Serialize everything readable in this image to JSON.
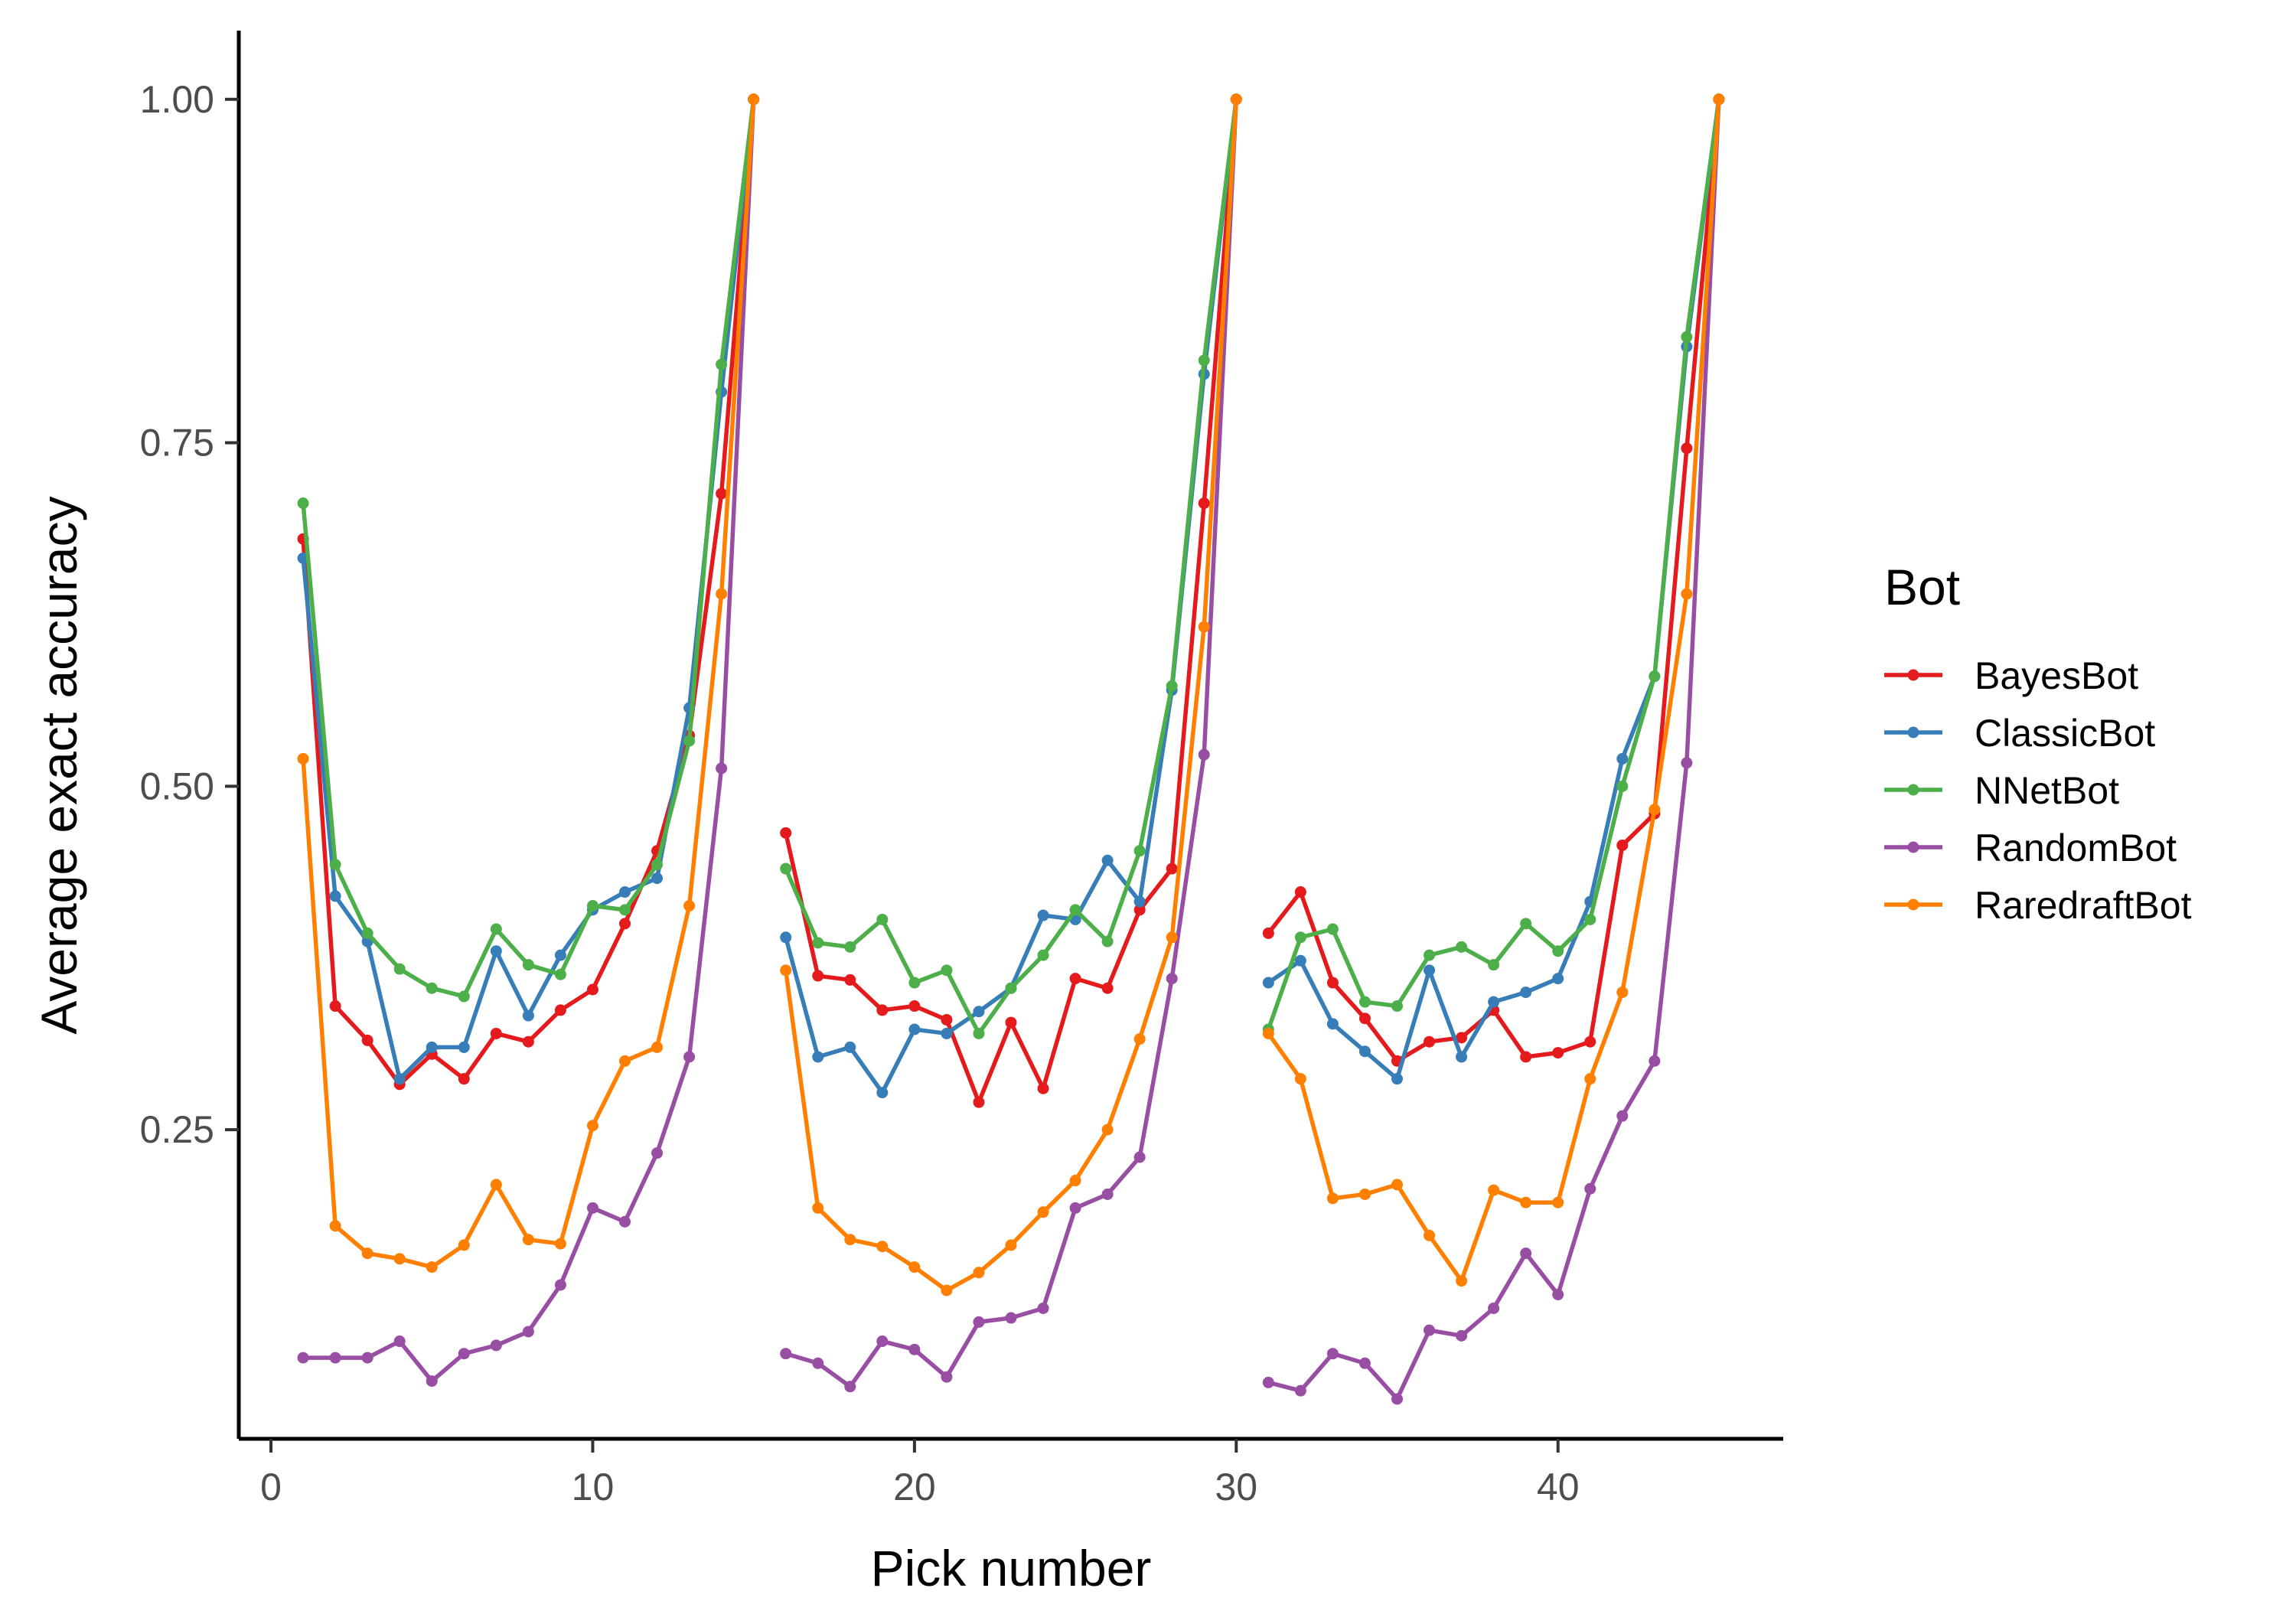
{
  "chart_data": {
    "type": "line",
    "xlabel": "Pick number",
    "ylabel": "Average exact accuracy",
    "xlim": [
      -1,
      47
    ],
    "ylim": [
      0.025,
      1.05
    ],
    "x_ticks": [
      0,
      10,
      20,
      30,
      40
    ],
    "x_tick_labels": [
      "0",
      "10",
      "20",
      "30",
      "40"
    ],
    "y_ticks": [
      0.25,
      0.5,
      0.75,
      1.0
    ],
    "y_tick_labels": [
      "0.25",
      "0.50",
      "0.75",
      "1.00"
    ],
    "grid": false,
    "legend": {
      "title": "Bot",
      "position": "right"
    },
    "segments": [
      [
        1,
        15
      ],
      [
        16,
        30
      ],
      [
        31,
        45
      ]
    ],
    "series": [
      {
        "name": "BayesBot",
        "color": "#e41a1c",
        "x": [
          1,
          2,
          3,
          4,
          5,
          6,
          7,
          8,
          9,
          10,
          11,
          12,
          13,
          14,
          15,
          16,
          17,
          18,
          19,
          20,
          21,
          22,
          23,
          24,
          25,
          26,
          27,
          28,
          29,
          30,
          31,
          32,
          33,
          34,
          35,
          36,
          37,
          38,
          39,
          40,
          41,
          42,
          43,
          44,
          45
        ],
        "y": [
          0.68,
          0.34,
          0.315,
          0.283,
          0.305,
          0.287,
          0.32,
          0.314,
          0.337,
          0.352,
          0.4,
          0.453,
          0.537,
          0.713,
          1.0,
          0.466,
          0.362,
          0.359,
          0.337,
          0.34,
          0.33,
          0.27,
          0.328,
          0.28,
          0.36,
          0.353,
          0.41,
          0.44,
          0.706,
          1.0,
          0.393,
          0.423,
          0.357,
          0.331,
          0.3,
          0.314,
          0.317,
          0.337,
          0.303,
          0.306,
          0.314,
          0.457,
          0.48,
          0.746,
          1.0
        ]
      },
      {
        "name": "ClassicBot",
        "color": "#377eb8",
        "x": [
          1,
          2,
          3,
          4,
          5,
          6,
          7,
          8,
          9,
          10,
          11,
          12,
          13,
          14,
          15,
          16,
          17,
          18,
          19,
          20,
          21,
          22,
          23,
          24,
          25,
          26,
          27,
          28,
          29,
          30,
          31,
          32,
          33,
          34,
          35,
          36,
          37,
          38,
          39,
          40,
          41,
          42,
          43,
          44,
          45
        ],
        "y": [
          0.666,
          0.42,
          0.387,
          0.287,
          0.31,
          0.31,
          0.38,
          0.333,
          0.377,
          0.41,
          0.423,
          0.433,
          0.557,
          0.787,
          1.0,
          0.39,
          0.303,
          0.31,
          0.277,
          0.323,
          0.32,
          0.336,
          0.353,
          0.406,
          0.403,
          0.446,
          0.416,
          0.57,
          0.8,
          1.0,
          0.357,
          0.373,
          0.327,
          0.307,
          0.287,
          0.366,
          0.303,
          0.343,
          0.35,
          0.36,
          0.416,
          0.52,
          0.58,
          0.82,
          1.0
        ]
      },
      {
        "name": "NNetBot",
        "color": "#4daf4a",
        "x": [
          1,
          2,
          3,
          4,
          5,
          6,
          7,
          8,
          9,
          10,
          11,
          12,
          13,
          14,
          15,
          16,
          17,
          18,
          19,
          20,
          21,
          22,
          23,
          24,
          25,
          26,
          27,
          28,
          29,
          30,
          31,
          32,
          33,
          34,
          35,
          36,
          37,
          38,
          39,
          40,
          41,
          42,
          43,
          44,
          45
        ],
        "y": [
          0.706,
          0.443,
          0.393,
          0.367,
          0.353,
          0.347,
          0.396,
          0.37,
          0.363,
          0.413,
          0.41,
          0.443,
          0.533,
          0.807,
          1.0,
          0.44,
          0.386,
          0.383,
          0.403,
          0.357,
          0.366,
          0.32,
          0.353,
          0.377,
          0.41,
          0.387,
          0.453,
          0.573,
          0.81,
          1.0,
          0.323,
          0.39,
          0.396,
          0.343,
          0.34,
          0.377,
          0.383,
          0.37,
          0.4,
          0.38,
          0.403,
          0.5,
          0.58,
          0.827,
          1.0
        ]
      },
      {
        "name": "RandomBot",
        "color": "#984ea3",
        "x": [
          1,
          2,
          3,
          4,
          5,
          6,
          7,
          8,
          9,
          10,
          11,
          12,
          13,
          14,
          15,
          16,
          17,
          18,
          19,
          20,
          21,
          22,
          23,
          24,
          25,
          26,
          27,
          28,
          29,
          30,
          31,
          32,
          33,
          34,
          35,
          36,
          37,
          38,
          39,
          40,
          41,
          42,
          43,
          44,
          45
        ],
        "y": [
          0.084,
          0.084,
          0.084,
          0.096,
          0.067,
          0.087,
          0.093,
          0.103,
          0.137,
          0.193,
          0.183,
          0.233,
          0.303,
          0.513,
          1.0,
          0.087,
          0.08,
          0.063,
          0.096,
          0.09,
          0.07,
          0.11,
          0.113,
          0.12,
          0.193,
          0.203,
          0.23,
          0.36,
          0.523,
          1.0,
          0.066,
          0.06,
          0.087,
          0.08,
          0.054,
          0.104,
          0.1,
          0.12,
          0.16,
          0.13,
          0.207,
          0.26,
          0.3,
          0.517,
          1.0
        ]
      },
      {
        "name": "RaredraftBot",
        "color": "#ff7f00",
        "x": [
          1,
          2,
          3,
          4,
          5,
          6,
          7,
          8,
          9,
          10,
          11,
          12,
          13,
          14,
          15,
          16,
          17,
          18,
          19,
          20,
          21,
          22,
          23,
          24,
          25,
          26,
          27,
          28,
          29,
          30,
          31,
          32,
          33,
          34,
          35,
          36,
          37,
          38,
          39,
          40,
          41,
          42,
          43,
          44,
          45
        ],
        "y": [
          0.52,
          0.18,
          0.16,
          0.156,
          0.15,
          0.166,
          0.21,
          0.17,
          0.167,
          0.253,
          0.3,
          0.31,
          0.413,
          0.64,
          1.0,
          0.366,
          0.193,
          0.17,
          0.165,
          0.15,
          0.133,
          0.146,
          0.166,
          0.19,
          0.213,
          0.25,
          0.316,
          0.39,
          0.616,
          1.0,
          0.32,
          0.287,
          0.2,
          0.203,
          0.21,
          0.173,
          0.14,
          0.206,
          0.197,
          0.197,
          0.287,
          0.35,
          0.483,
          0.64,
          1.0
        ]
      }
    ]
  }
}
